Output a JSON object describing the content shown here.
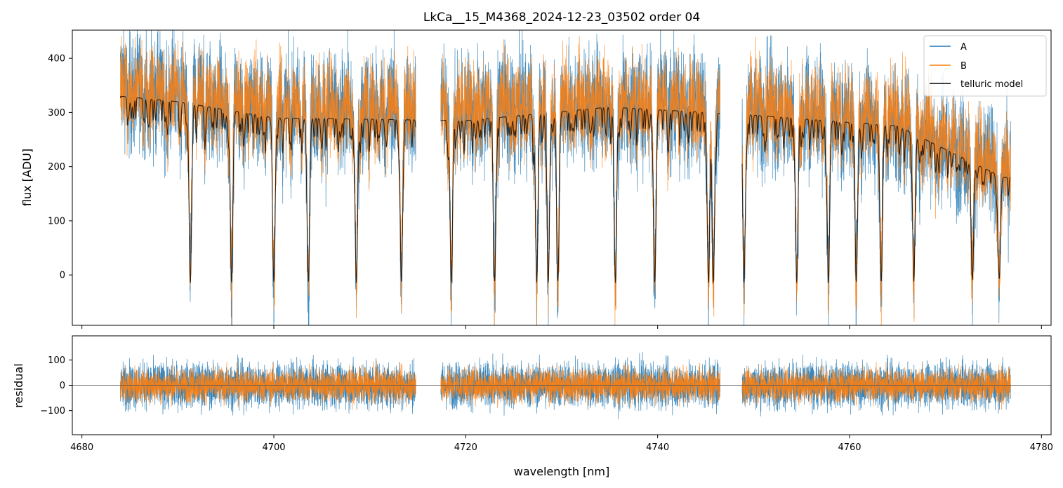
{
  "chart_data": [
    {
      "type": "line",
      "panel": "top",
      "title": "LkCa__15_M4368_2024-12-23_03502  order 04",
      "xlabel": "",
      "ylabel": "flux [ADU]",
      "xlim": [
        4679,
        4781
      ],
      "ylim": [
        -93,
        452
      ],
      "x_ticks": [
        4680,
        4700,
        4720,
        4740,
        4760,
        4780
      ],
      "y_ticks": [
        0,
        100,
        200,
        300,
        400
      ],
      "y_tick_labels": [
        "0",
        "100",
        "200",
        "300",
        "400"
      ],
      "segments_nm": [
        [
          4684.0,
          4714.8
        ],
        [
          4717.4,
          4746.5
        ],
        [
          4748.8,
          4776.8
        ]
      ],
      "series": [
        {
          "name": "A",
          "color": "#1f77b4",
          "continuum": {
            "x": [
              4684,
              4690,
              4700,
              4720,
              4735,
              4750,
              4765,
              4776
            ],
            "y": [
              360,
              340,
              315,
              315,
              330,
              320,
              290,
              200
            ]
          },
          "noise": 95
        },
        {
          "name": "B",
          "color": "#ff7f0e",
          "continuum": {
            "x": [
              4684,
              4690,
              4700,
              4720,
              4735,
              4750,
              4765,
              4776
            ],
            "y": [
              360,
              345,
              320,
              320,
              335,
              325,
              300,
              210
            ]
          },
          "noise": 75
        },
        {
          "name": "telluric model",
          "color": "#000000",
          "continuum": {
            "x": [
              4684,
              4690,
              4700,
              4720,
              4735,
              4750,
              4765,
              4776
            ],
            "y": [
              330,
              320,
              290,
              285,
              310,
              295,
              275,
              180
            ]
          }
        }
      ],
      "deep_absorptions_nm": [
        4691.3,
        4695.6,
        4700.0,
        4703.6,
        4708.6,
        4713.3,
        4718.5,
        4723.0,
        4727.4,
        4728.6,
        4729.6,
        4735.6,
        4739.7,
        4745.3,
        4745.8,
        4749.0,
        4754.5,
        4757.8,
        4760.7,
        4763.3,
        4766.7,
        4772.8,
        4775.6
      ],
      "legend": {
        "position": "upper right",
        "entries": [
          "A",
          "B",
          "telluric model"
        ]
      }
    },
    {
      "type": "line",
      "panel": "bottom",
      "title": "",
      "xlabel": "wavelength [nm]",
      "ylabel": "residual",
      "xlim": [
        4679,
        4781
      ],
      "ylim": [
        -195,
        195
      ],
      "x_ticks": [
        4680,
        4700,
        4720,
        4740,
        4760,
        4780
      ],
      "x_tick_labels": [
        "4680",
        "4700",
        "4720",
        "4740",
        "4760",
        "4780"
      ],
      "y_ticks": [
        -100,
        0,
        100
      ],
      "y_tick_labels": [
        "−100",
        "0",
        "100"
      ],
      "reference_line_y": 0,
      "series": [
        {
          "name": "A",
          "color": "#1f77b4",
          "noise": 75
        },
        {
          "name": "B",
          "color": "#ff7f0e",
          "noise": 55
        }
      ]
    }
  ]
}
